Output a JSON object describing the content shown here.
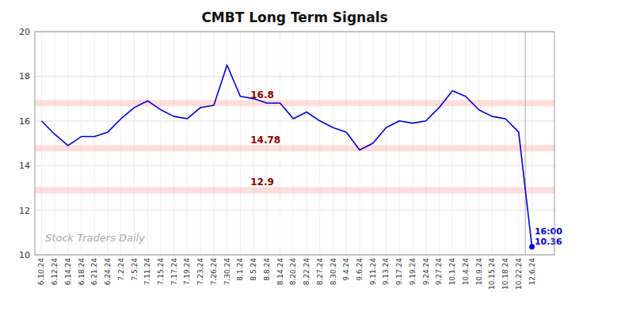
{
  "chart_data": {
    "type": "line",
    "title": "CMBT Long Term Signals",
    "categories": [
      "6.10.24",
      "6.12.24",
      "6.14.24",
      "6.18.24",
      "6.21.24",
      "6.24.24",
      "7.2.24",
      "7.5.24",
      "7.11.24",
      "7.15.24",
      "7.17.24",
      "7.19.24",
      "7.23.24",
      "7.26.24",
      "7.30.24",
      "8.1.24",
      "8.5.24",
      "8.8.24",
      "8.14.24",
      "8.20.24",
      "8.22.24",
      "8.27.24",
      "8.30.24",
      "9.4.24",
      "9.6.24",
      "9.11.24",
      "9.13.24",
      "9.17.24",
      "9.19.24",
      "9.24.24",
      "9.27.24",
      "10.1.24",
      "10.4.24",
      "10.9.24",
      "10.15.24",
      "10.18.24",
      "10.22.24",
      "12.6.24"
    ],
    "values": [
      16.0,
      15.4,
      14.9,
      15.3,
      15.3,
      15.5,
      16.1,
      16.6,
      16.9,
      16.5,
      16.2,
      16.1,
      16.6,
      16.7,
      18.5,
      17.1,
      17.0,
      16.8,
      16.8,
      16.1,
      16.4,
      16.0,
      15.7,
      15.5,
      14.7,
      15.0,
      15.7,
      16.0,
      15.9,
      16.0,
      16.6,
      17.35,
      17.1,
      16.5,
      16.2,
      16.1,
      15.5,
      10.36
    ],
    "color": "#0000cc",
    "ylim": [
      10,
      20
    ],
    "yticks": [
      10,
      12,
      14,
      16,
      18,
      20
    ],
    "grid": true,
    "reference_lines": [
      {
        "value": 16.8,
        "label": "16.8",
        "color": "#ffb3b3"
      },
      {
        "value": 14.78,
        "label": "14.78",
        "color": "#ffb3b3"
      },
      {
        "value": 12.9,
        "label": "12.9",
        "color": "#ffb3b3"
      }
    ],
    "last_point": {
      "time_label": "16:00",
      "value_label": "10.36"
    },
    "watermark": "Stock Traders Daily"
  }
}
